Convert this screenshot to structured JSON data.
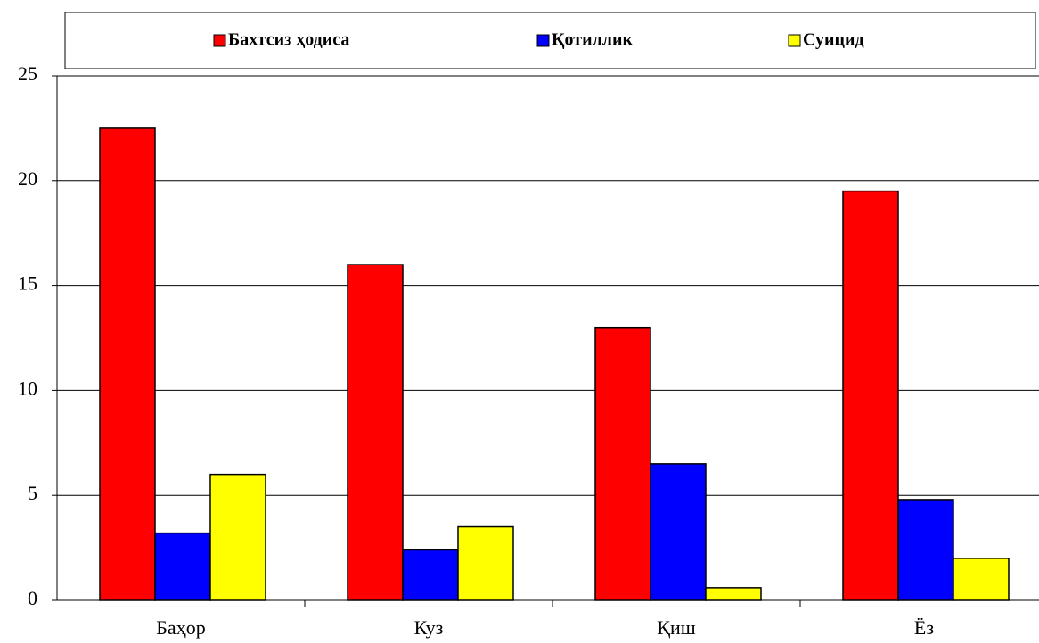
{
  "chart_data": {
    "type": "bar",
    "categories": [
      "Баҳор",
      "Куз",
      "Қиш",
      "Ёз"
    ],
    "series": [
      {
        "name": "Бахтсиз ҳодиса",
        "color": "#ff0000",
        "values": [
          22.5,
          16,
          13,
          19.5
        ]
      },
      {
        "name": "Қотиллик",
        "color": "#0000ff",
        "values": [
          3.2,
          2.4,
          6.5,
          4.8
        ]
      },
      {
        "name": "Суицид",
        "color": "#ffff00",
        "values": [
          6,
          3.5,
          0.6,
          2
        ]
      }
    ],
    "ylim": [
      0,
      25
    ],
    "yticks": [
      0,
      5,
      10,
      15,
      20,
      25
    ],
    "grid": true,
    "legend": "top"
  }
}
